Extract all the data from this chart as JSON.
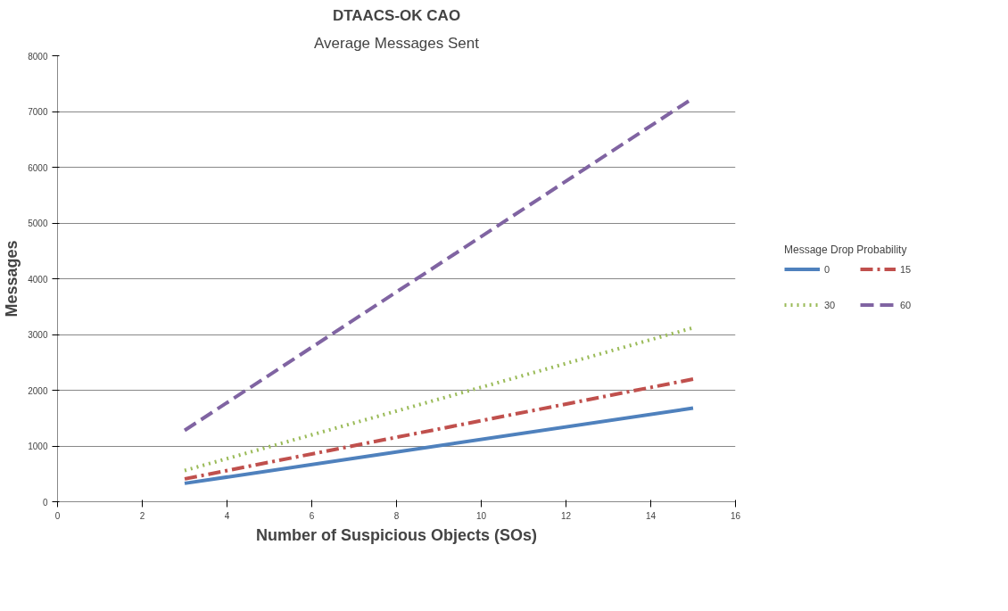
{
  "chart_data": {
    "type": "line",
    "title": "DTAACS-OK CAO",
    "subtitle": "Average Messages Sent",
    "xlabel": "Number of Suspicious Objects (SOs)",
    "ylabel": "Messages",
    "legend_title": "Message Drop Probability",
    "x": [
      3,
      15
    ],
    "series": [
      {
        "name": "0",
        "color": "#4f81bd",
        "values": [
          330,
          1680
        ],
        "line_style": "solid"
      },
      {
        "name": "15",
        "color": "#c0504d",
        "values": [
          410,
          2200
        ],
        "line_style": "dashdot"
      },
      {
        "name": "30",
        "color": "#9bbb59",
        "values": [
          560,
          3120
        ],
        "line_style": "dotted"
      },
      {
        "name": "60",
        "color": "#8064a2",
        "values": [
          1280,
          7240
        ],
        "line_style": "dashed"
      }
    ],
    "xlim": [
      0,
      16
    ],
    "xticks": [
      0,
      2,
      4,
      6,
      8,
      10,
      12,
      14,
      16
    ],
    "ylim": [
      0,
      8000
    ],
    "yticks": [
      0,
      1000,
      2000,
      3000,
      4000,
      5000,
      6000,
      7000,
      8000
    ],
    "grid": "y",
    "legend": "right",
    "marker": "none"
  }
}
